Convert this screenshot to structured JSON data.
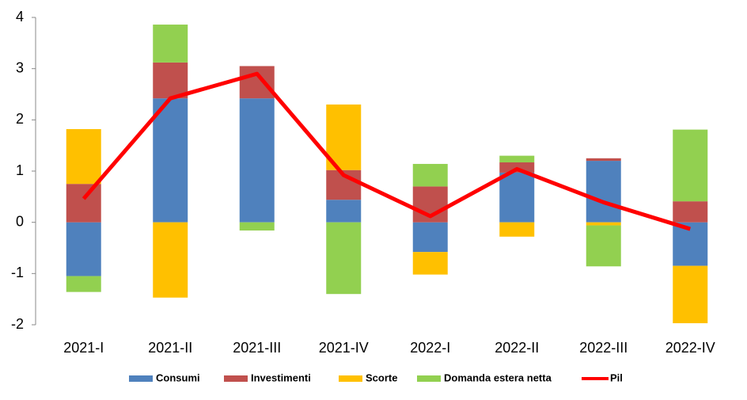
{
  "chart_data": {
    "type": "bar",
    "stacked": true,
    "categories": [
      "2021-I",
      "2021-II",
      "2021-III",
      "2021-IV",
      "2022-I",
      "2022-II",
      "2022-III",
      "2022-IV"
    ],
    "series": [
      {
        "name": "Consumi",
        "color": "#4f81bd",
        "values": [
          -1.05,
          2.42,
          2.42,
          0.44,
          -0.58,
          0.97,
          1.2,
          -0.85
        ]
      },
      {
        "name": "Investimenti",
        "color": "#c0504d",
        "values": [
          0.75,
          0.7,
          0.63,
          0.58,
          0.7,
          0.2,
          0.05,
          0.41
        ]
      },
      {
        "name": "Scorte",
        "color": "#ffc000",
        "values": [
          1.07,
          -1.47,
          0,
          1.28,
          -0.44,
          -0.28,
          -0.06,
          -1.12
        ]
      },
      {
        "name": "Domanda estera netta",
        "color": "#92d050",
        "values": [
          -0.31,
          0.74,
          -0.16,
          -1.4,
          0.44,
          0.13,
          -0.8,
          1.4
        ]
      },
      {
        "name": "Pil",
        "color": "#ff0000",
        "type": "line",
        "values": [
          0.46,
          2.42,
          2.9,
          0.92,
          0.12,
          1.04,
          0.39,
          -0.13
        ]
      }
    ],
    "ylim": [
      -2,
      4
    ],
    "yticks": [
      -2,
      -1,
      0,
      1,
      2,
      3,
      4
    ],
    "grid": false,
    "legend": "bottom"
  }
}
